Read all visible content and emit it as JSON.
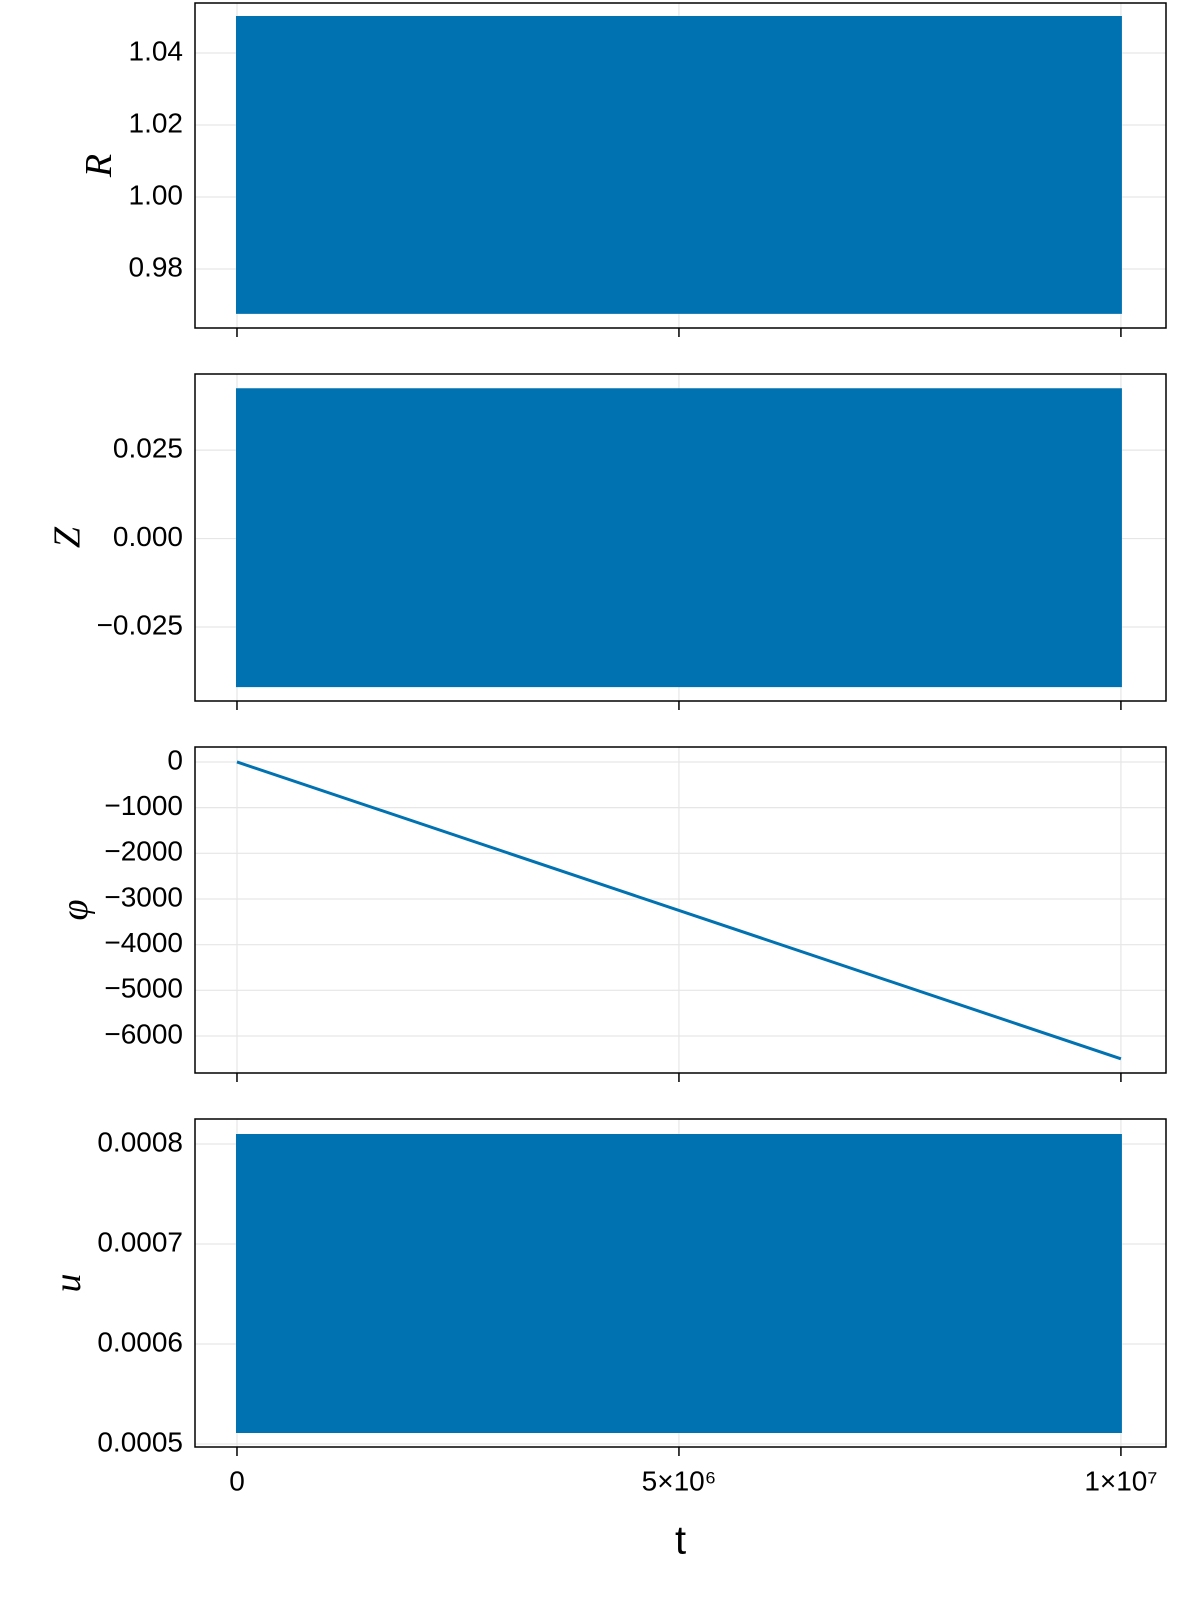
{
  "chart_data": [
    {
      "type": "band",
      "ylabel": "R",
      "x": [
        0,
        10000000
      ],
      "lower": [
        0.9678,
        0.9678
      ],
      "upper": [
        1.05,
        1.05
      ],
      "color": "#0072b2",
      "xlim": [
        -475000,
        10510000
      ],
      "xticks": [
        0,
        5000000,
        10000000
      ],
      "xtick_labels": false,
      "ylim": [
        0.9636,
        1.0539
      ],
      "yticks": [
        0.98,
        {
          "value": 1,
          "label": "1.00"
        },
        1.02,
        1.04
      ],
      "grid": true
    },
    {
      "type": "band",
      "ylabel": "Z",
      "x": [
        0,
        10000000
      ],
      "lower": [
        -0.0417,
        -0.0417
      ],
      "upper": [
        0.0422,
        0.0422
      ],
      "color": "#0072b2",
      "xlim": [
        -475000,
        10510000
      ],
      "xticks": [
        0,
        5000000,
        10000000
      ],
      "xtick_labels": false,
      "ylim": [
        -0.0459,
        0.0465
      ],
      "yticks": [
        {
          "value": -0.025,
          "label": "−0.025"
        },
        {
          "value": 0,
          "label": "0.000"
        },
        0.025
      ],
      "grid": true
    },
    {
      "type": "line",
      "ylabel": "φ",
      "x": [
        0,
        10000000
      ],
      "values": [
        0,
        -6500
      ],
      "color": "#0072b2",
      "xlim": [
        -475000,
        10510000
      ],
      "xticks": [
        0,
        5000000,
        10000000
      ],
      "xtick_labels": false,
      "ylim": [
        -6810,
        328
      ],
      "yticks": [
        {
          "value": -6000,
          "label": "−6000"
        },
        {
          "value": -5000,
          "label": "−5000"
        },
        {
          "value": -4000,
          "label": "−4000"
        },
        {
          "value": -3000,
          "label": "−3000"
        },
        {
          "value": -2000,
          "label": "−2000"
        },
        {
          "value": -1000,
          "label": "−1000"
        },
        0
      ],
      "grid": true
    },
    {
      "type": "band",
      "ylabel": "u",
      "xlabel": "t",
      "x": [
        0,
        10000000
      ],
      "lower": [
        0.000512,
        0.000512
      ],
      "upper": [
        0.000809,
        0.000809
      ],
      "color": "#0072b2",
      "xlim": [
        -475000,
        10510000
      ],
      "xticks": [
        0,
        {
          "value": 5000000,
          "label": "5×10⁶"
        },
        {
          "value": 10000000,
          "label": "1×10⁷"
        }
      ],
      "xtick_labels": true,
      "ylim": [
        0.000497,
        0.000825
      ],
      "yticks": [
        0.0005,
        0.0006,
        0.0007,
        0.0008
      ],
      "grid": true
    }
  ]
}
